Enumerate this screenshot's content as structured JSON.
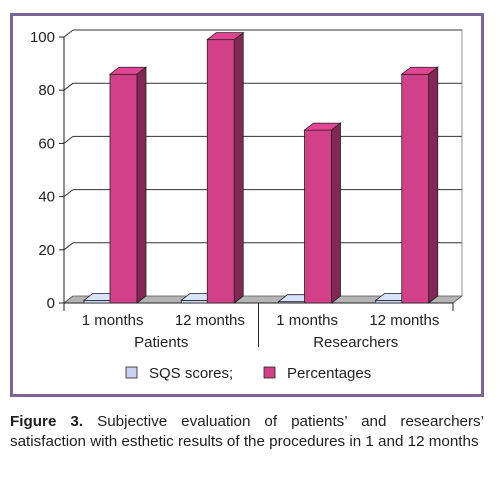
{
  "chart_data": {
    "type": "bar",
    "groups": [
      "Patients",
      "Researchers"
    ],
    "categories": [
      "1 months",
      "12 months",
      "1 months",
      "12 months"
    ],
    "series": [
      {
        "name": "SQS scores;",
        "values": [
          1,
          1,
          0.5,
          1
        ],
        "color": "#c8d2f2"
      },
      {
        "name": "Percentages",
        "values": [
          86,
          99,
          65,
          86
        ],
        "color": "#d3408a"
      }
    ],
    "ylim": [
      0,
      100
    ],
    "yticks": [
      "0",
      "20",
      "40",
      "60",
      "80",
      "100"
    ],
    "grid": true,
    "legend": "bottom"
  },
  "caption": {
    "label": "Figure 3.",
    "text": "Subjective evaluation of patients’ and researchers’ satisfaction with esthetic results of the procedures in 1 and 12 months"
  }
}
